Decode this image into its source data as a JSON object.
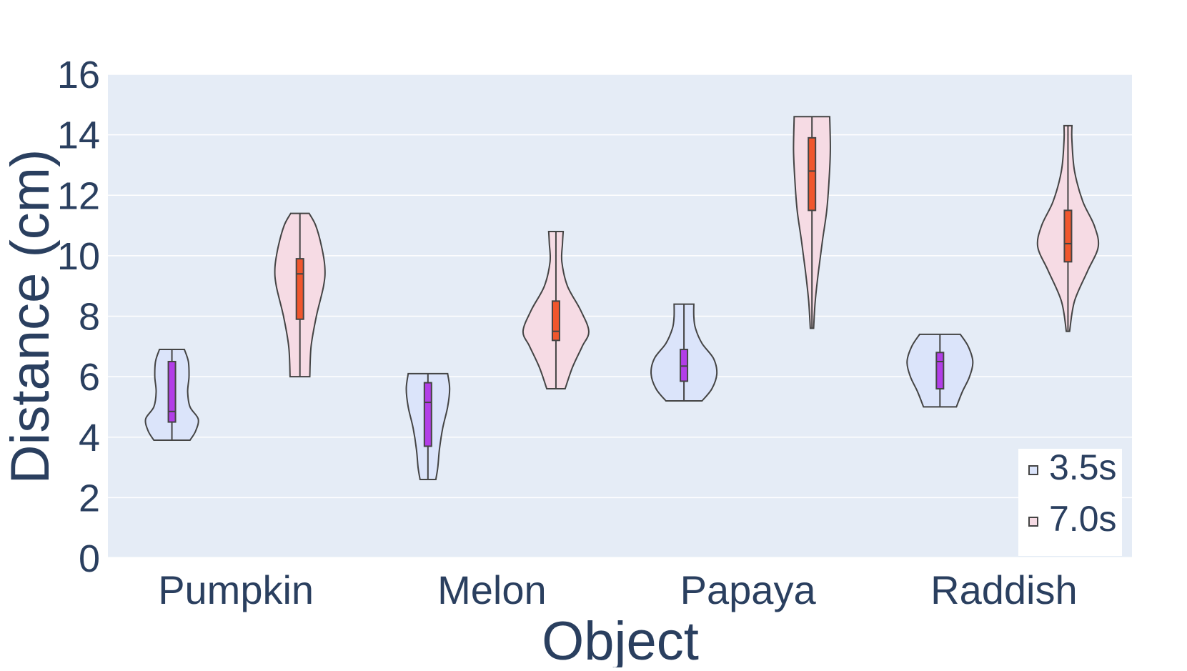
{
  "chart_data": {
    "type": "violin",
    "title": "",
    "xlabel": "Object",
    "ylabel": "Distance (cm)",
    "ylim": [
      0,
      16
    ],
    "yticks": [
      0,
      2,
      4,
      6,
      8,
      10,
      12,
      14,
      16
    ],
    "grid": true,
    "legend_position": "bottom-right",
    "categories": [
      "Pumpkin",
      "Melon",
      "Papaya",
      "Raddish"
    ],
    "series": [
      {
        "name": "3.5s",
        "fill_color": "#dbe4fa",
        "box_color": "#b23ee8",
        "values": [
          {
            "category": "Pumpkin",
            "min": 3.9,
            "q1": 4.5,
            "median": 4.85,
            "q3": 6.5,
            "max": 6.9,
            "density": [
              [
                3.9,
                0.55
              ],
              [
                4.2,
                0.72
              ],
              [
                4.6,
                0.8
              ],
              [
                5.0,
                0.55
              ],
              [
                5.5,
                0.48
              ],
              [
                6.0,
                0.52
              ],
              [
                6.5,
                0.5
              ],
              [
                6.9,
                0.38
              ]
            ]
          },
          {
            "category": "Melon",
            "min": 2.6,
            "q1": 3.7,
            "median": 5.15,
            "q3": 5.8,
            "max": 6.1,
            "density": [
              [
                2.6,
                0.24
              ],
              [
                3.0,
                0.3
              ],
              [
                3.6,
                0.35
              ],
              [
                4.3,
                0.45
              ],
              [
                5.0,
                0.6
              ],
              [
                5.6,
                0.66
              ],
              [
                6.1,
                0.6
              ]
            ]
          },
          {
            "category": "Papaya",
            "min": 5.2,
            "q1": 5.85,
            "median": 6.35,
            "q3": 6.9,
            "max": 8.4,
            "density": [
              [
                5.2,
                0.55
              ],
              [
                5.6,
                0.85
              ],
              [
                6.1,
                1.0
              ],
              [
                6.6,
                0.9
              ],
              [
                7.1,
                0.55
              ],
              [
                7.6,
                0.35
              ],
              [
                8.0,
                0.3
              ],
              [
                8.4,
                0.3
              ]
            ]
          },
          {
            "category": "Raddish",
            "min": 5.0,
            "q1": 5.6,
            "median": 6.5,
            "q3": 6.8,
            "max": 7.4,
            "density": [
              [
                5.0,
                0.5
              ],
              [
                5.5,
                0.68
              ],
              [
                6.0,
                0.9
              ],
              [
                6.5,
                1.0
              ],
              [
                7.0,
                0.86
              ],
              [
                7.4,
                0.62
              ]
            ]
          }
        ]
      },
      {
        "name": "7.0s",
        "fill_color": "#f6dbe4",
        "box_color": "#f0562d",
        "values": [
          {
            "category": "Pumpkin",
            "min": 6.0,
            "q1": 7.9,
            "median": 9.4,
            "q3": 9.9,
            "max": 11.4,
            "density": [
              [
                6.0,
                0.3
              ],
              [
                7.0,
                0.34
              ],
              [
                8.0,
                0.5
              ],
              [
                9.0,
                0.72
              ],
              [
                9.6,
                0.76
              ],
              [
                10.3,
                0.66
              ],
              [
                11.0,
                0.48
              ],
              [
                11.4,
                0.28
              ]
            ]
          },
          {
            "category": "Melon",
            "min": 5.6,
            "q1": 7.2,
            "median": 7.5,
            "q3": 8.5,
            "max": 10.8,
            "density": [
              [
                5.6,
                0.28
              ],
              [
                6.3,
                0.5
              ],
              [
                7.0,
                0.8
              ],
              [
                7.5,
                1.0
              ],
              [
                8.2,
                0.75
              ],
              [
                9.0,
                0.35
              ],
              [
                9.8,
                0.18
              ],
              [
                10.4,
                0.2
              ],
              [
                10.8,
                0.22
              ]
            ]
          },
          {
            "category": "Papaya",
            "min": 7.6,
            "q1": 11.5,
            "median": 12.8,
            "q3": 13.9,
            "max": 14.6,
            "density": [
              [
                7.6,
                0.05
              ],
              [
                8.5,
                0.1
              ],
              [
                9.5,
                0.2
              ],
              [
                10.5,
                0.32
              ],
              [
                11.5,
                0.45
              ],
              [
                12.5,
                0.52
              ],
              [
                13.5,
                0.56
              ],
              [
                14.6,
                0.54
              ]
            ]
          },
          {
            "category": "Raddish",
            "min": 7.5,
            "q1": 9.8,
            "median": 10.4,
            "q3": 11.5,
            "max": 14.3,
            "density": [
              [
                7.5,
                0.05
              ],
              [
                8.5,
                0.2
              ],
              [
                9.5,
                0.6
              ],
              [
                10.3,
                0.92
              ],
              [
                11.0,
                0.8
              ],
              [
                11.8,
                0.45
              ],
              [
                12.8,
                0.2
              ],
              [
                13.8,
                0.12
              ],
              [
                14.3,
                0.12
              ]
            ]
          }
        ]
      }
    ]
  }
}
